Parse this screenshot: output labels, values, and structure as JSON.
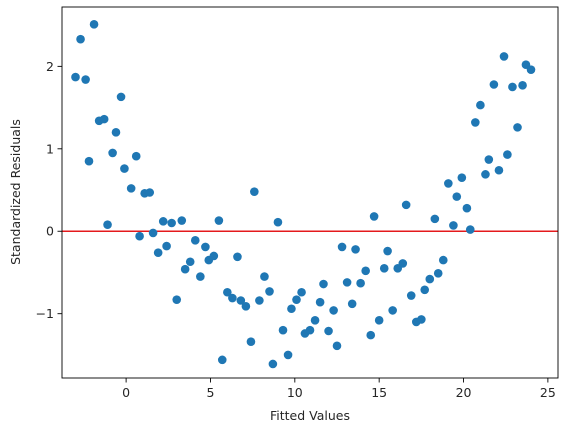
{
  "chart_data": {
    "type": "scatter",
    "xlabel": "Fitted Values",
    "ylabel": "Standardized Residuals",
    "xlim": [
      -3.8,
      25.6
    ],
    "ylim": [
      -1.78,
      2.72
    ],
    "xticks": [
      0,
      5,
      10,
      15,
      20,
      25
    ],
    "xtick_labels": [
      "0",
      "5",
      "10",
      "15",
      "20",
      "25"
    ],
    "yticks": [
      -1,
      0,
      1,
      2
    ],
    "ytick_labels": [
      "−1",
      "0",
      "1",
      "2"
    ],
    "grid": false,
    "legend": "none",
    "point_color": "#1f77b4",
    "reference_line": {
      "y": 0,
      "color": "#e41a1c"
    },
    "points": [
      [
        -3.0,
        1.87
      ],
      [
        -2.7,
        2.33
      ],
      [
        -2.4,
        1.84
      ],
      [
        -2.2,
        0.85
      ],
      [
        -1.9,
        2.51
      ],
      [
        -1.6,
        1.34
      ],
      [
        -1.3,
        1.36
      ],
      [
        -1.1,
        0.08
      ],
      [
        -0.8,
        0.95
      ],
      [
        -0.6,
        1.2
      ],
      [
        -0.3,
        1.63
      ],
      [
        -0.1,
        0.76
      ],
      [
        0.3,
        0.52
      ],
      [
        0.6,
        0.91
      ],
      [
        0.8,
        -0.06
      ],
      [
        1.1,
        0.46
      ],
      [
        1.4,
        0.47
      ],
      [
        1.6,
        -0.02
      ],
      [
        1.9,
        -0.26
      ],
      [
        2.2,
        0.12
      ],
      [
        2.4,
        -0.18
      ],
      [
        2.7,
        0.1
      ],
      [
        3.0,
        -0.83
      ],
      [
        3.3,
        0.13
      ],
      [
        3.5,
        -0.46
      ],
      [
        3.8,
        -0.37
      ],
      [
        4.1,
        -0.11
      ],
      [
        4.4,
        -0.55
      ],
      [
        4.7,
        -0.19
      ],
      [
        4.9,
        -0.35
      ],
      [
        5.2,
        -0.3
      ],
      [
        5.5,
        0.13
      ],
      [
        5.7,
        -1.56
      ],
      [
        6.0,
        -0.74
      ],
      [
        6.3,
        -0.81
      ],
      [
        6.6,
        -0.31
      ],
      [
        6.8,
        -0.84
      ],
      [
        7.1,
        -0.91
      ],
      [
        7.4,
        -1.34
      ],
      [
        7.6,
        0.48
      ],
      [
        7.9,
        -0.84
      ],
      [
        8.2,
        -0.55
      ],
      [
        8.5,
        -0.73
      ],
      [
        8.7,
        -1.61
      ],
      [
        9.0,
        0.11
      ],
      [
        9.3,
        -1.2
      ],
      [
        9.6,
        -1.5
      ],
      [
        9.8,
        -0.94
      ],
      [
        10.1,
        -0.83
      ],
      [
        10.4,
        -0.74
      ],
      [
        10.6,
        -1.24
      ],
      [
        10.9,
        -1.2
      ],
      [
        11.2,
        -1.08
      ],
      [
        11.5,
        -0.86
      ],
      [
        11.7,
        -0.64
      ],
      [
        12.0,
        -1.21
      ],
      [
        12.3,
        -0.96
      ],
      [
        12.5,
        -1.39
      ],
      [
        12.8,
        -0.19
      ],
      [
        13.1,
        -0.62
      ],
      [
        13.4,
        -0.88
      ],
      [
        13.6,
        -0.22
      ],
      [
        13.9,
        -0.63
      ],
      [
        14.2,
        -0.48
      ],
      [
        14.5,
        -1.26
      ],
      [
        14.7,
        0.18
      ],
      [
        15.0,
        -1.08
      ],
      [
        15.3,
        -0.45
      ],
      [
        15.5,
        -0.24
      ],
      [
        15.8,
        -0.96
      ],
      [
        16.1,
        -0.45
      ],
      [
        16.4,
        -0.39
      ],
      [
        16.6,
        0.32
      ],
      [
        16.9,
        -0.78
      ],
      [
        17.2,
        -1.1
      ],
      [
        17.5,
        -1.07
      ],
      [
        17.7,
        -0.71
      ],
      [
        18.0,
        -0.58
      ],
      [
        18.3,
        0.15
      ],
      [
        18.5,
        -0.51
      ],
      [
        18.8,
        -0.35
      ],
      [
        19.1,
        0.58
      ],
      [
        19.4,
        0.07
      ],
      [
        19.6,
        0.42
      ],
      [
        19.9,
        0.65
      ],
      [
        20.2,
        0.28
      ],
      [
        20.4,
        0.02
      ],
      [
        20.7,
        1.32
      ],
      [
        21.0,
        1.53
      ],
      [
        21.3,
        0.69
      ],
      [
        21.5,
        0.87
      ],
      [
        21.8,
        1.78
      ],
      [
        22.1,
        0.74
      ],
      [
        22.4,
        2.12
      ],
      [
        22.6,
        0.93
      ],
      [
        22.9,
        1.75
      ],
      [
        23.2,
        1.26
      ],
      [
        23.5,
        1.77
      ],
      [
        23.7,
        2.02
      ],
      [
        24.0,
        1.96
      ]
    ]
  }
}
